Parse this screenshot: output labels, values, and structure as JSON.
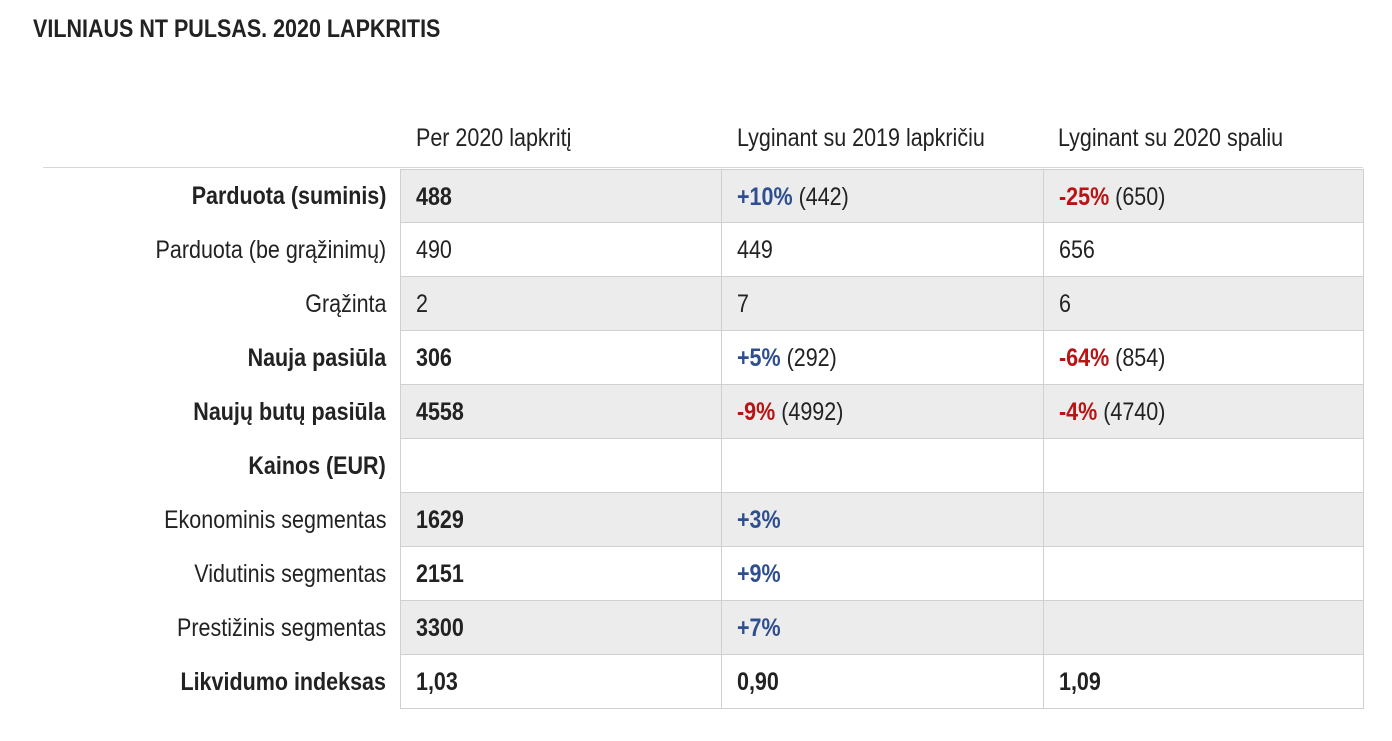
{
  "title": "VILNIAUS NT PULSAS. 2020 LAPKRITIS",
  "headers": [
    "Per 2020 lapkritį",
    "Lyginant su 2019 lapkričiu",
    "Lyginant su 2020 spaliu"
  ],
  "colors": {
    "positive": "#2e4f8f",
    "negative": "#b81414",
    "shade": "#ececec"
  },
  "rows": [
    {
      "label": "Parduota (suminis)",
      "value": "488",
      "vs2019": {
        "change": "+10%",
        "ref": "(442)"
      },
      "vsPrevMonth": {
        "change": "-25%",
        "ref": "(650)"
      }
    },
    {
      "label": "Parduota (be grąžinimų)",
      "value": "490",
      "vs2019": {
        "change": "",
        "ref": "449"
      },
      "vsPrevMonth": {
        "change": "",
        "ref": "656"
      }
    },
    {
      "label": "Grąžinta",
      "value": "2",
      "vs2019": {
        "change": "",
        "ref": "7"
      },
      "vsPrevMonth": {
        "change": "",
        "ref": "6"
      }
    },
    {
      "label": "Nauja pasiūla",
      "value": "306",
      "vs2019": {
        "change": "+5%",
        "ref": "(292)"
      },
      "vsPrevMonth": {
        "change": "-64%",
        "ref": "(854)"
      }
    },
    {
      "label": "Naujų butų pasiūla",
      "value": "4558",
      "vs2019": {
        "change": "-9%",
        "ref": "(4992)"
      },
      "vsPrevMonth": {
        "change": "-4%",
        "ref": "(4740)"
      }
    },
    {
      "label": "Kainos (EUR)",
      "value": "",
      "vs2019": {
        "change": "",
        "ref": ""
      },
      "vsPrevMonth": {
        "change": "",
        "ref": ""
      }
    },
    {
      "label": "Ekonominis segmentas",
      "value": "1629",
      "vs2019": {
        "change": "+3%",
        "ref": ""
      },
      "vsPrevMonth": {
        "change": "",
        "ref": ""
      }
    },
    {
      "label": "Vidutinis segmentas",
      "value": "2151",
      "vs2019": {
        "change": "+9%",
        "ref": ""
      },
      "vsPrevMonth": {
        "change": "",
        "ref": ""
      }
    },
    {
      "label": "Prestižinis segmentas",
      "value": "3300",
      "vs2019": {
        "change": "+7%",
        "ref": ""
      },
      "vsPrevMonth": {
        "change": "",
        "ref": ""
      }
    },
    {
      "label": "Likvidumo indeksas",
      "value": "1,03",
      "vs2019": {
        "change": "",
        "ref": "0,90"
      },
      "vsPrevMonth": {
        "change": "",
        "ref": "1,09"
      }
    }
  ]
}
